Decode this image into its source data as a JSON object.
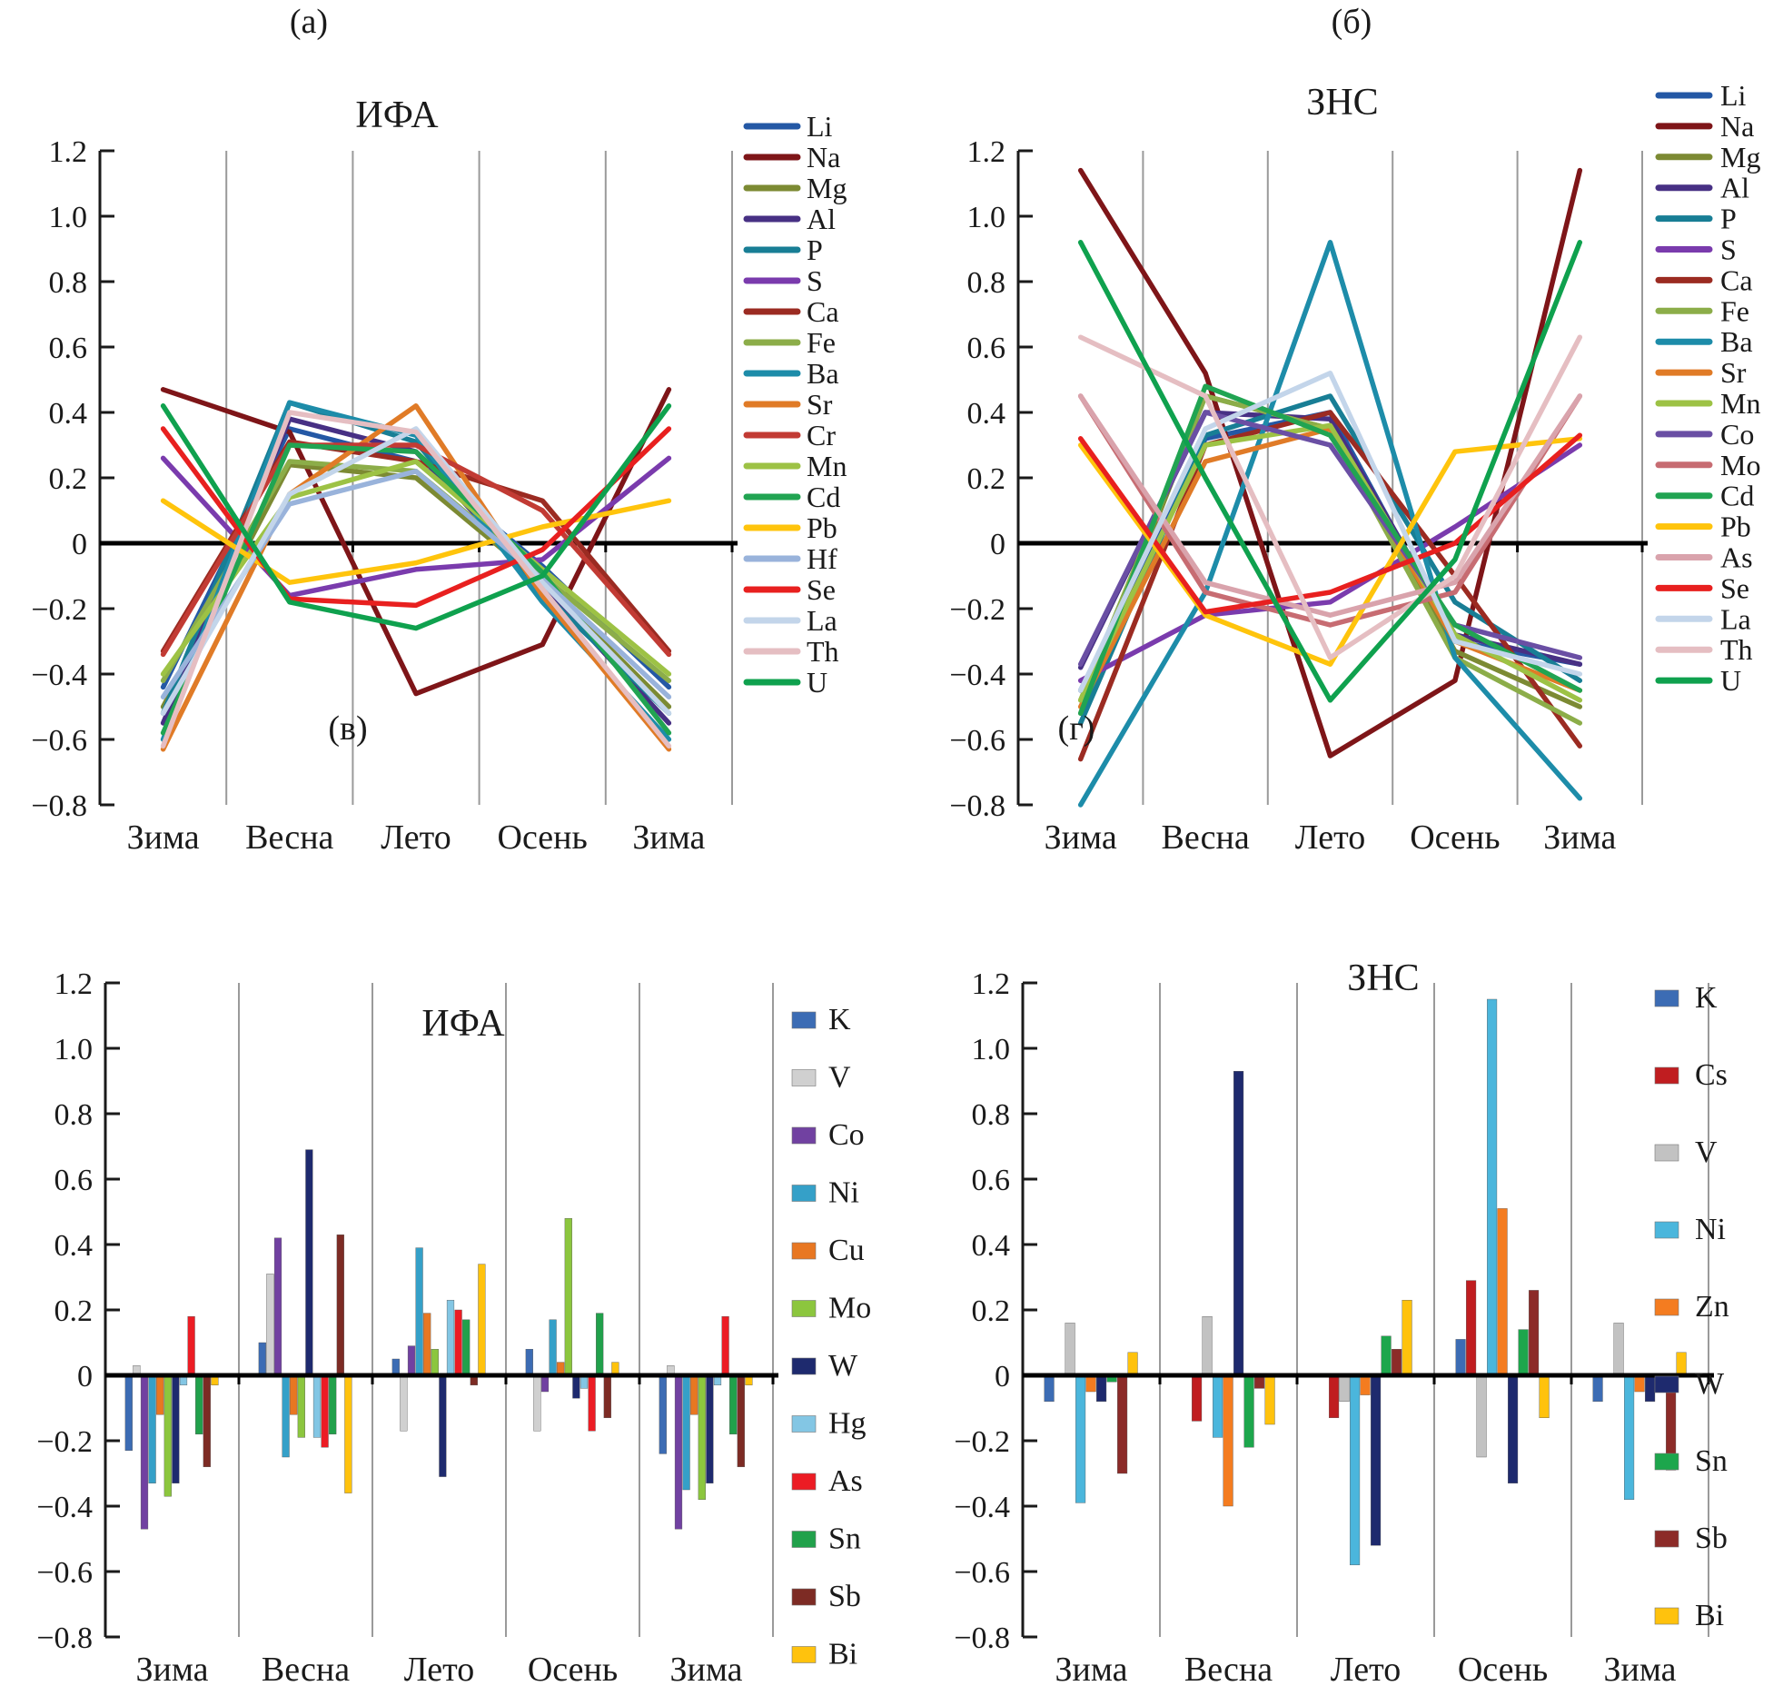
{
  "figure_titles": {
    "panel_a_label": "(а)",
    "panel_a_title": "ИФА",
    "panel_b_label": "(б)",
    "panel_b_title": "ЗНС",
    "panel_c_label": "(в)",
    "panel_c_title": "ИФА",
    "panel_d_label": "(г)",
    "panel_d_title": "ЗНС"
  },
  "chart_data": [
    {
      "type": "line",
      "panel": "(а)",
      "title": "ИФА",
      "categories": [
        "Зима",
        "Весна",
        "Лето",
        "Осень",
        "Зима"
      ],
      "ylim": [
        -0.8,
        1.2
      ],
      "ytick_labels": [
        "1.2",
        "1.0",
        "0.8",
        "0.6",
        "0.4",
        "0.2",
        "0",
        "−0.2",
        "−0.4",
        "−0.6",
        "−0.8"
      ],
      "grid": "vertical",
      "legend_position": "right",
      "series": [
        {
          "name": "Li",
          "color": "#2458A5",
          "values": [
            -0.44,
            0.35,
            0.25,
            -0.07,
            -0.44
          ]
        },
        {
          "name": "Na",
          "color": "#7E1518",
          "values": [
            0.47,
            0.34,
            -0.46,
            -0.31,
            0.47
          ]
        },
        {
          "name": "Mg",
          "color": "#7C8A33",
          "values": [
            -0.5,
            0.24,
            0.2,
            -0.12,
            -0.5
          ]
        },
        {
          "name": "Al",
          "color": "#473084",
          "values": [
            -0.55,
            0.38,
            0.28,
            -0.13,
            -0.55
          ]
        },
        {
          "name": "P",
          "color": "#187E95",
          "values": [
            -0.52,
            0.43,
            0.31,
            -0.15,
            -0.52
          ]
        },
        {
          "name": "S",
          "color": "#7A3BAD",
          "values": [
            0.26,
            -0.16,
            -0.08,
            -0.05,
            0.26
          ]
        },
        {
          "name": "Ca",
          "color": "#9B2B22",
          "values": [
            -0.33,
            0.31,
            0.25,
            0.13,
            -0.33
          ]
        },
        {
          "name": "Fe",
          "color": "#8CAD49",
          "values": [
            -0.42,
            0.25,
            0.22,
            -0.1,
            -0.42
          ]
        },
        {
          "name": "Ba",
          "color": "#1D8CA9",
          "values": [
            -0.6,
            0.43,
            0.33,
            -0.18,
            -0.6
          ]
        },
        {
          "name": "Sr",
          "color": "#E07B27",
          "values": [
            -0.63,
            0.15,
            0.42,
            -0.16,
            -0.63
          ]
        },
        {
          "name": "Cr",
          "color": "#C23B34",
          "values": [
            -0.34,
            0.3,
            0.3,
            0.1,
            -0.34
          ]
        },
        {
          "name": "Mn",
          "color": "#9DC245",
          "values": [
            -0.4,
            0.14,
            0.25,
            -0.08,
            -0.4
          ]
        },
        {
          "name": "Cd",
          "color": "#21A452",
          "values": [
            -0.58,
            0.3,
            0.28,
            -0.09,
            -0.58
          ]
        },
        {
          "name": "Pb",
          "color": "#FFC40C",
          "values": [
            0.13,
            -0.12,
            -0.06,
            0.05,
            0.13
          ]
        },
        {
          "name": "Hf",
          "color": "#99B3DB",
          "values": [
            -0.47,
            0.12,
            0.22,
            -0.11,
            -0.47
          ]
        },
        {
          "name": "Se",
          "color": "#E8201F",
          "values": [
            0.35,
            -0.17,
            -0.19,
            -0.02,
            0.35
          ]
        },
        {
          "name": "La",
          "color": "#C3D5EA",
          "values": [
            -0.52,
            0.15,
            0.35,
            -0.12,
            -0.52
          ]
        },
        {
          "name": "Th",
          "color": "#E5BEC2",
          "values": [
            -0.62,
            0.4,
            0.34,
            -0.14,
            -0.62
          ]
        },
        {
          "name": "U",
          "color": "#0FA14E",
          "values": [
            0.42,
            -0.18,
            -0.26,
            -0.1,
            0.42
          ]
        }
      ]
    },
    {
      "type": "line",
      "panel": "(б)",
      "title": "ЗНС",
      "categories": [
        "Зима",
        "Весна",
        "Лето",
        "Осень",
        "Зима"
      ],
      "ylim": [
        -0.8,
        1.2
      ],
      "ytick_labels": [
        "1.2",
        "1.0",
        "0.8",
        "0.6",
        "0.4",
        "0.2",
        "0",
        "−0.2",
        "−0.4",
        "−0.6",
        "−0.8"
      ],
      "grid": "vertical",
      "legend_position": "right",
      "series": [
        {
          "name": "Li",
          "color": "#2458A5",
          "values": [
            -0.45,
            0.32,
            0.4,
            -0.3,
            -0.37
          ]
        },
        {
          "name": "Na",
          "color": "#7E1518",
          "values": [
            1.14,
            0.52,
            -0.65,
            -0.42,
            1.14
          ]
        },
        {
          "name": "Mg",
          "color": "#7C8A33",
          "values": [
            -0.52,
            0.45,
            0.35,
            -0.33,
            -0.5
          ]
        },
        {
          "name": "Al",
          "color": "#473084",
          "values": [
            -0.38,
            0.4,
            0.38,
            -0.28,
            -0.37
          ]
        },
        {
          "name": "P",
          "color": "#187E95",
          "values": [
            -0.55,
            0.33,
            0.45,
            -0.18,
            -0.42
          ]
        },
        {
          "name": "S",
          "color": "#7A3BAD",
          "values": [
            -0.42,
            -0.22,
            -0.18,
            0.05,
            0.3
          ]
        },
        {
          "name": "Ca",
          "color": "#9B2B22",
          "values": [
            -0.66,
            0.3,
            0.4,
            -0.1,
            -0.62
          ]
        },
        {
          "name": "Fe",
          "color": "#8CAD49",
          "values": [
            -0.48,
            0.45,
            0.35,
            -0.35,
            -0.55
          ]
        },
        {
          "name": "Ba",
          "color": "#1D8CA9",
          "values": [
            -0.8,
            -0.15,
            0.92,
            -0.35,
            -0.78
          ]
        },
        {
          "name": "Sr",
          "color": "#E07B27",
          "values": [
            -0.5,
            0.25,
            0.35,
            -0.3,
            -0.45
          ]
        },
        {
          "name": "Mn",
          "color": "#9DC245",
          "values": [
            -0.48,
            0.3,
            0.36,
            -0.28,
            -0.48
          ]
        },
        {
          "name": "Co",
          "color": "#6A4FA4",
          "values": [
            -0.37,
            0.4,
            0.3,
            -0.25,
            -0.35
          ]
        },
        {
          "name": "Mo",
          "color": "#C76C72",
          "values": [
            0.45,
            -0.15,
            -0.25,
            -0.15,
            0.45
          ]
        },
        {
          "name": "Cd",
          "color": "#21A452",
          "values": [
            -0.52,
            0.48,
            0.33,
            -0.25,
            -0.45
          ]
        },
        {
          "name": "Pb",
          "color": "#FFC40C",
          "values": [
            0.3,
            -0.22,
            -0.37,
            0.28,
            0.32
          ]
        },
        {
          "name": "As",
          "color": "#D9A3AC",
          "values": [
            0.45,
            -0.12,
            -0.22,
            -0.12,
            0.45
          ]
        },
        {
          "name": "Se",
          "color": "#E8201F",
          "values": [
            0.32,
            -0.21,
            -0.15,
            0.0,
            0.33
          ]
        },
        {
          "name": "La",
          "color": "#C3D5EA",
          "values": [
            -0.45,
            0.35,
            0.52,
            -0.3,
            -0.4
          ]
        },
        {
          "name": "Th",
          "color": "#E5BEC2",
          "values": [
            0.63,
            0.45,
            -0.35,
            -0.1,
            0.63
          ]
        },
        {
          "name": "U",
          "color": "#0FA14E",
          "values": [
            0.92,
            0.2,
            -0.48,
            -0.05,
            0.92
          ]
        }
      ]
    },
    {
      "type": "bar",
      "panel": "(в)",
      "title": "ИФА",
      "categories": [
        "Зима",
        "Весна",
        "Лето",
        "Осень",
        "Зима"
      ],
      "ylim": [
        -0.8,
        1.2
      ],
      "ytick_labels": [
        "1.2",
        "1.0",
        "0.8",
        "0.6",
        "0.4",
        "0.2",
        "0",
        "−0.2",
        "−0.4",
        "−0.6",
        "−0.8"
      ],
      "grid": "vertical",
      "legend_position": "right",
      "series": [
        {
          "name": "K",
          "color": "#3C6CB4",
          "values": [
            -0.23,
            0.1,
            0.05,
            0.08,
            -0.24
          ]
        },
        {
          "name": "V",
          "color": "#D0D0D0",
          "values": [
            0.03,
            0.31,
            -0.17,
            -0.17,
            0.03
          ]
        },
        {
          "name": "Co",
          "color": "#7141A1",
          "values": [
            -0.47,
            0.42,
            0.09,
            -0.05,
            -0.47
          ]
        },
        {
          "name": "Ni",
          "color": "#35A0C8",
          "values": [
            -0.33,
            -0.25,
            0.39,
            0.17,
            -0.35
          ]
        },
        {
          "name": "Cu",
          "color": "#E87722",
          "values": [
            -0.12,
            -0.12,
            0.19,
            0.04,
            -0.12
          ]
        },
        {
          "name": "Mo",
          "color": "#8CC63E",
          "values": [
            -0.37,
            -0.19,
            0.08,
            0.48,
            -0.38
          ]
        },
        {
          "name": "W",
          "color": "#1E2A6E",
          "values": [
            -0.33,
            0.69,
            -0.31,
            -0.07,
            -0.33
          ]
        },
        {
          "name": "Hg",
          "color": "#83C6E4",
          "values": [
            -0.03,
            -0.19,
            0.23,
            -0.04,
            -0.03
          ]
        },
        {
          "name": "As",
          "color": "#EC1C24",
          "values": [
            0.18,
            -0.22,
            0.2,
            -0.17,
            0.18
          ]
        },
        {
          "name": "Sn",
          "color": "#21A14B",
          "values": [
            -0.18,
            -0.18,
            0.17,
            0.19,
            -0.18
          ]
        },
        {
          "name": "Sb",
          "color": "#7D2B24",
          "values": [
            -0.28,
            0.43,
            -0.03,
            -0.13,
            -0.28
          ]
        },
        {
          "name": "Bi",
          "color": "#FFC20D",
          "values": [
            -0.03,
            -0.36,
            0.34,
            0.04,
            -0.03
          ]
        }
      ]
    },
    {
      "type": "bar",
      "panel": "(г)",
      "title": "ЗНС",
      "categories": [
        "Зима",
        "Весна",
        "Лето",
        "Осень",
        "Зима"
      ],
      "ylim": [
        -0.8,
        1.2
      ],
      "ytick_labels": [
        "1.2",
        "1.0",
        "0.8",
        "0.6",
        "0.4",
        "0.2",
        "0",
        "−0.2",
        "−0.4",
        "−0.6",
        "−0.8"
      ],
      "grid": "vertical",
      "legend_position": "right",
      "series": [
        {
          "name": "K",
          "color": "#3C6CB4",
          "values": [
            -0.08,
            0.0,
            0.0,
            0.11,
            -0.08
          ]
        },
        {
          "name": "Cs",
          "color": "#C01D20",
          "values": [
            0.0,
            -0.14,
            -0.13,
            0.29,
            0.0
          ]
        },
        {
          "name": "V",
          "color": "#C2C2C2",
          "values": [
            0.16,
            0.18,
            -0.08,
            -0.25,
            0.16
          ]
        },
        {
          "name": "Ni",
          "color": "#4BB6DC",
          "values": [
            -0.39,
            -0.19,
            -0.58,
            1.15,
            -0.38
          ]
        },
        {
          "name": "Zn",
          "color": "#F47C20",
          "values": [
            -0.05,
            -0.4,
            -0.06,
            0.51,
            -0.05
          ]
        },
        {
          "name": "W",
          "color": "#1E2A6E",
          "values": [
            -0.08,
            0.93,
            -0.52,
            -0.33,
            -0.08
          ]
        },
        {
          "name": "Sn",
          "color": "#1DA64C",
          "values": [
            -0.02,
            -0.22,
            0.12,
            0.14,
            -0.03
          ]
        },
        {
          "name": "Sb",
          "color": "#8C2B28",
          "values": [
            -0.3,
            -0.04,
            0.08,
            0.26,
            -0.29
          ]
        },
        {
          "name": "Bi",
          "color": "#FFC20D",
          "values": [
            0.07,
            -0.15,
            0.23,
            -0.13,
            0.07
          ]
        }
      ]
    }
  ]
}
